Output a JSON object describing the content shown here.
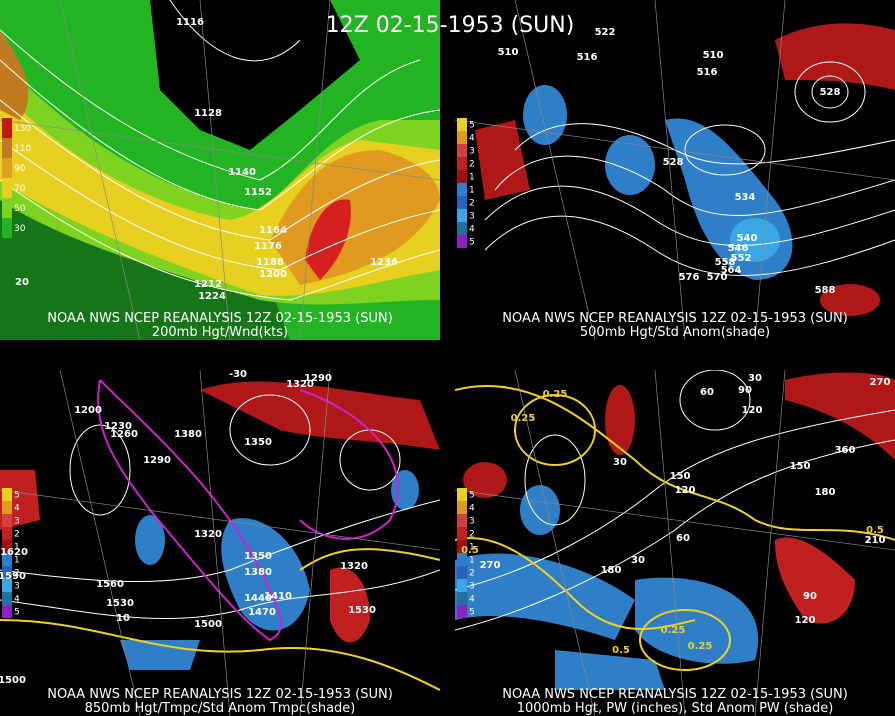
{
  "title": "12Z 02-15-1953 (SUN)",
  "panels": [
    {
      "caption": "NOAA NWS NCEP REANALYSIS 12Z 02-15-1953 (SUN)",
      "subcaption": "200mb Hgt/Wnd(kts)",
      "legend": [
        "130",
        "110",
        "90",
        "70",
        "50",
        "30"
      ],
      "labels": [
        "1116",
        "1128",
        "1140",
        "1152",
        "1164",
        "1176",
        "1188",
        "1200",
        "1212",
        "1224",
        "1236",
        "20"
      ]
    },
    {
      "caption": "NOAA NWS NCEP REANALYSIS 12Z 02-15-1953 (SUN)",
      "subcaption": "500mb Hgt/Std Anom(shade)",
      "legend": [
        "5",
        "4",
        "3",
        "2",
        "1",
        "1",
        "2",
        "3",
        "4",
        "5"
      ],
      "labels": [
        "510",
        "516",
        "522",
        "510",
        "516",
        "528",
        "534",
        "540",
        "546",
        "552",
        "558",
        "564",
        "570",
        "576",
        "588",
        "528"
      ]
    },
    {
      "caption": "NOAA NWS NCEP REANALYSIS 12Z 02-15-1953 (SUN)",
      "subcaption": "850mb Hgt/Tmpc/Std Anom Tmpc(shade)",
      "legend": [
        "5",
        "4",
        "3",
        "2",
        "1",
        "1",
        "2",
        "3",
        "4",
        "5"
      ],
      "labels": [
        "1200",
        "1230",
        "1260",
        "1290",
        "1290",
        "1320",
        "1350",
        "1380",
        "1320",
        "1350",
        "1380",
        "1410",
        "1440",
        "1470",
        "1500",
        "1530",
        "1560",
        "1590",
        "1620",
        "1500",
        "1530",
        "1320",
        "-30",
        "10"
      ]
    },
    {
      "caption": "NOAA NWS NCEP REANALYSIS 12Z 02-15-1953 (SUN)",
      "subcaption": "1000mb Hgt, PW (inches), Std Anom PW (shade)",
      "legend": [
        "5",
        "4",
        "3",
        "2",
        "1",
        "1",
        "2",
        "3",
        "4",
        "5"
      ],
      "labels": [
        "270",
        "30",
        "90",
        "120",
        "60",
        "150",
        "120",
        "30",
        "30",
        "60",
        "180",
        "270",
        "150",
        "180",
        "210",
        "360",
        "120",
        "90",
        "0.25",
        "0.25",
        "0.5",
        "0.25",
        "0.25",
        "0.5",
        "0.5"
      ]
    }
  ]
}
